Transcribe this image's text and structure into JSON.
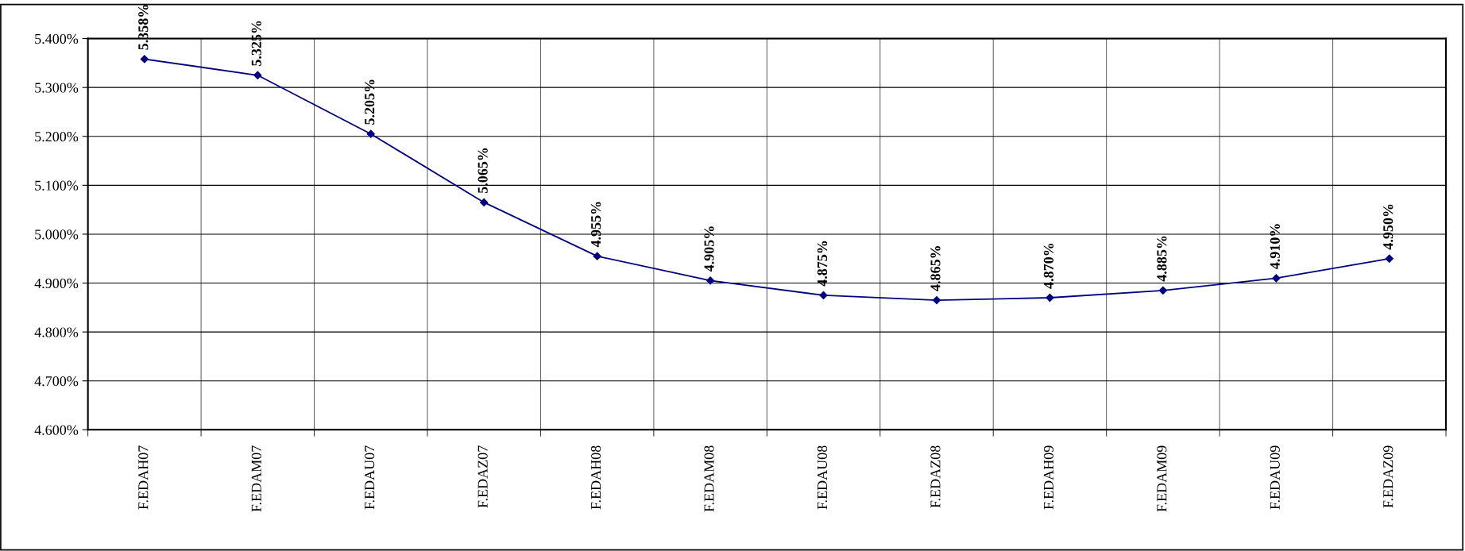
{
  "chart_data": {
    "type": "line",
    "categories": [
      "F.EDAH07",
      "F.EDAM07",
      "F.EDAU07",
      "F.EDAZ07",
      "F.EDAH08",
      "F.EDAM08",
      "F.EDAU08",
      "F.EDAZ08",
      "F.EDAH09",
      "F.EDAM09",
      "F.EDAU09",
      "F.EDAZ09"
    ],
    "series": [
      {
        "color": "#000080",
        "values": [
          5.358,
          5.325,
          5.205,
          5.065,
          4.955,
          4.905,
          4.875,
          4.865,
          4.87,
          4.885,
          4.91,
          4.95
        ],
        "value_labels": [
          "5.358%",
          "5.325%",
          "5.205%",
          "5.065%",
          "4.955%",
          "4.905%",
          "4.875%",
          "4.865%",
          "4.870%",
          "4.885%",
          "4.910%",
          "4.950%"
        ]
      }
    ],
    "ylim": [
      4.6,
      5.4
    ],
    "yticks": [
      {
        "value": 4.6,
        "label": "4.600%"
      },
      {
        "value": 4.7,
        "label": "4.700%"
      },
      {
        "value": 4.8,
        "label": "4.800%"
      },
      {
        "value": 4.9,
        "label": "4.900%"
      },
      {
        "value": 5.0,
        "label": "5.000%"
      },
      {
        "value": 5.1,
        "label": "5.100%"
      },
      {
        "value": 5.2,
        "label": "5.200%"
      },
      {
        "value": 5.3,
        "label": "5.300%"
      },
      {
        "value": 5.4,
        "label": "5.400%"
      }
    ],
    "grid": true,
    "marker": "diamond",
    "line_style": "solid"
  }
}
